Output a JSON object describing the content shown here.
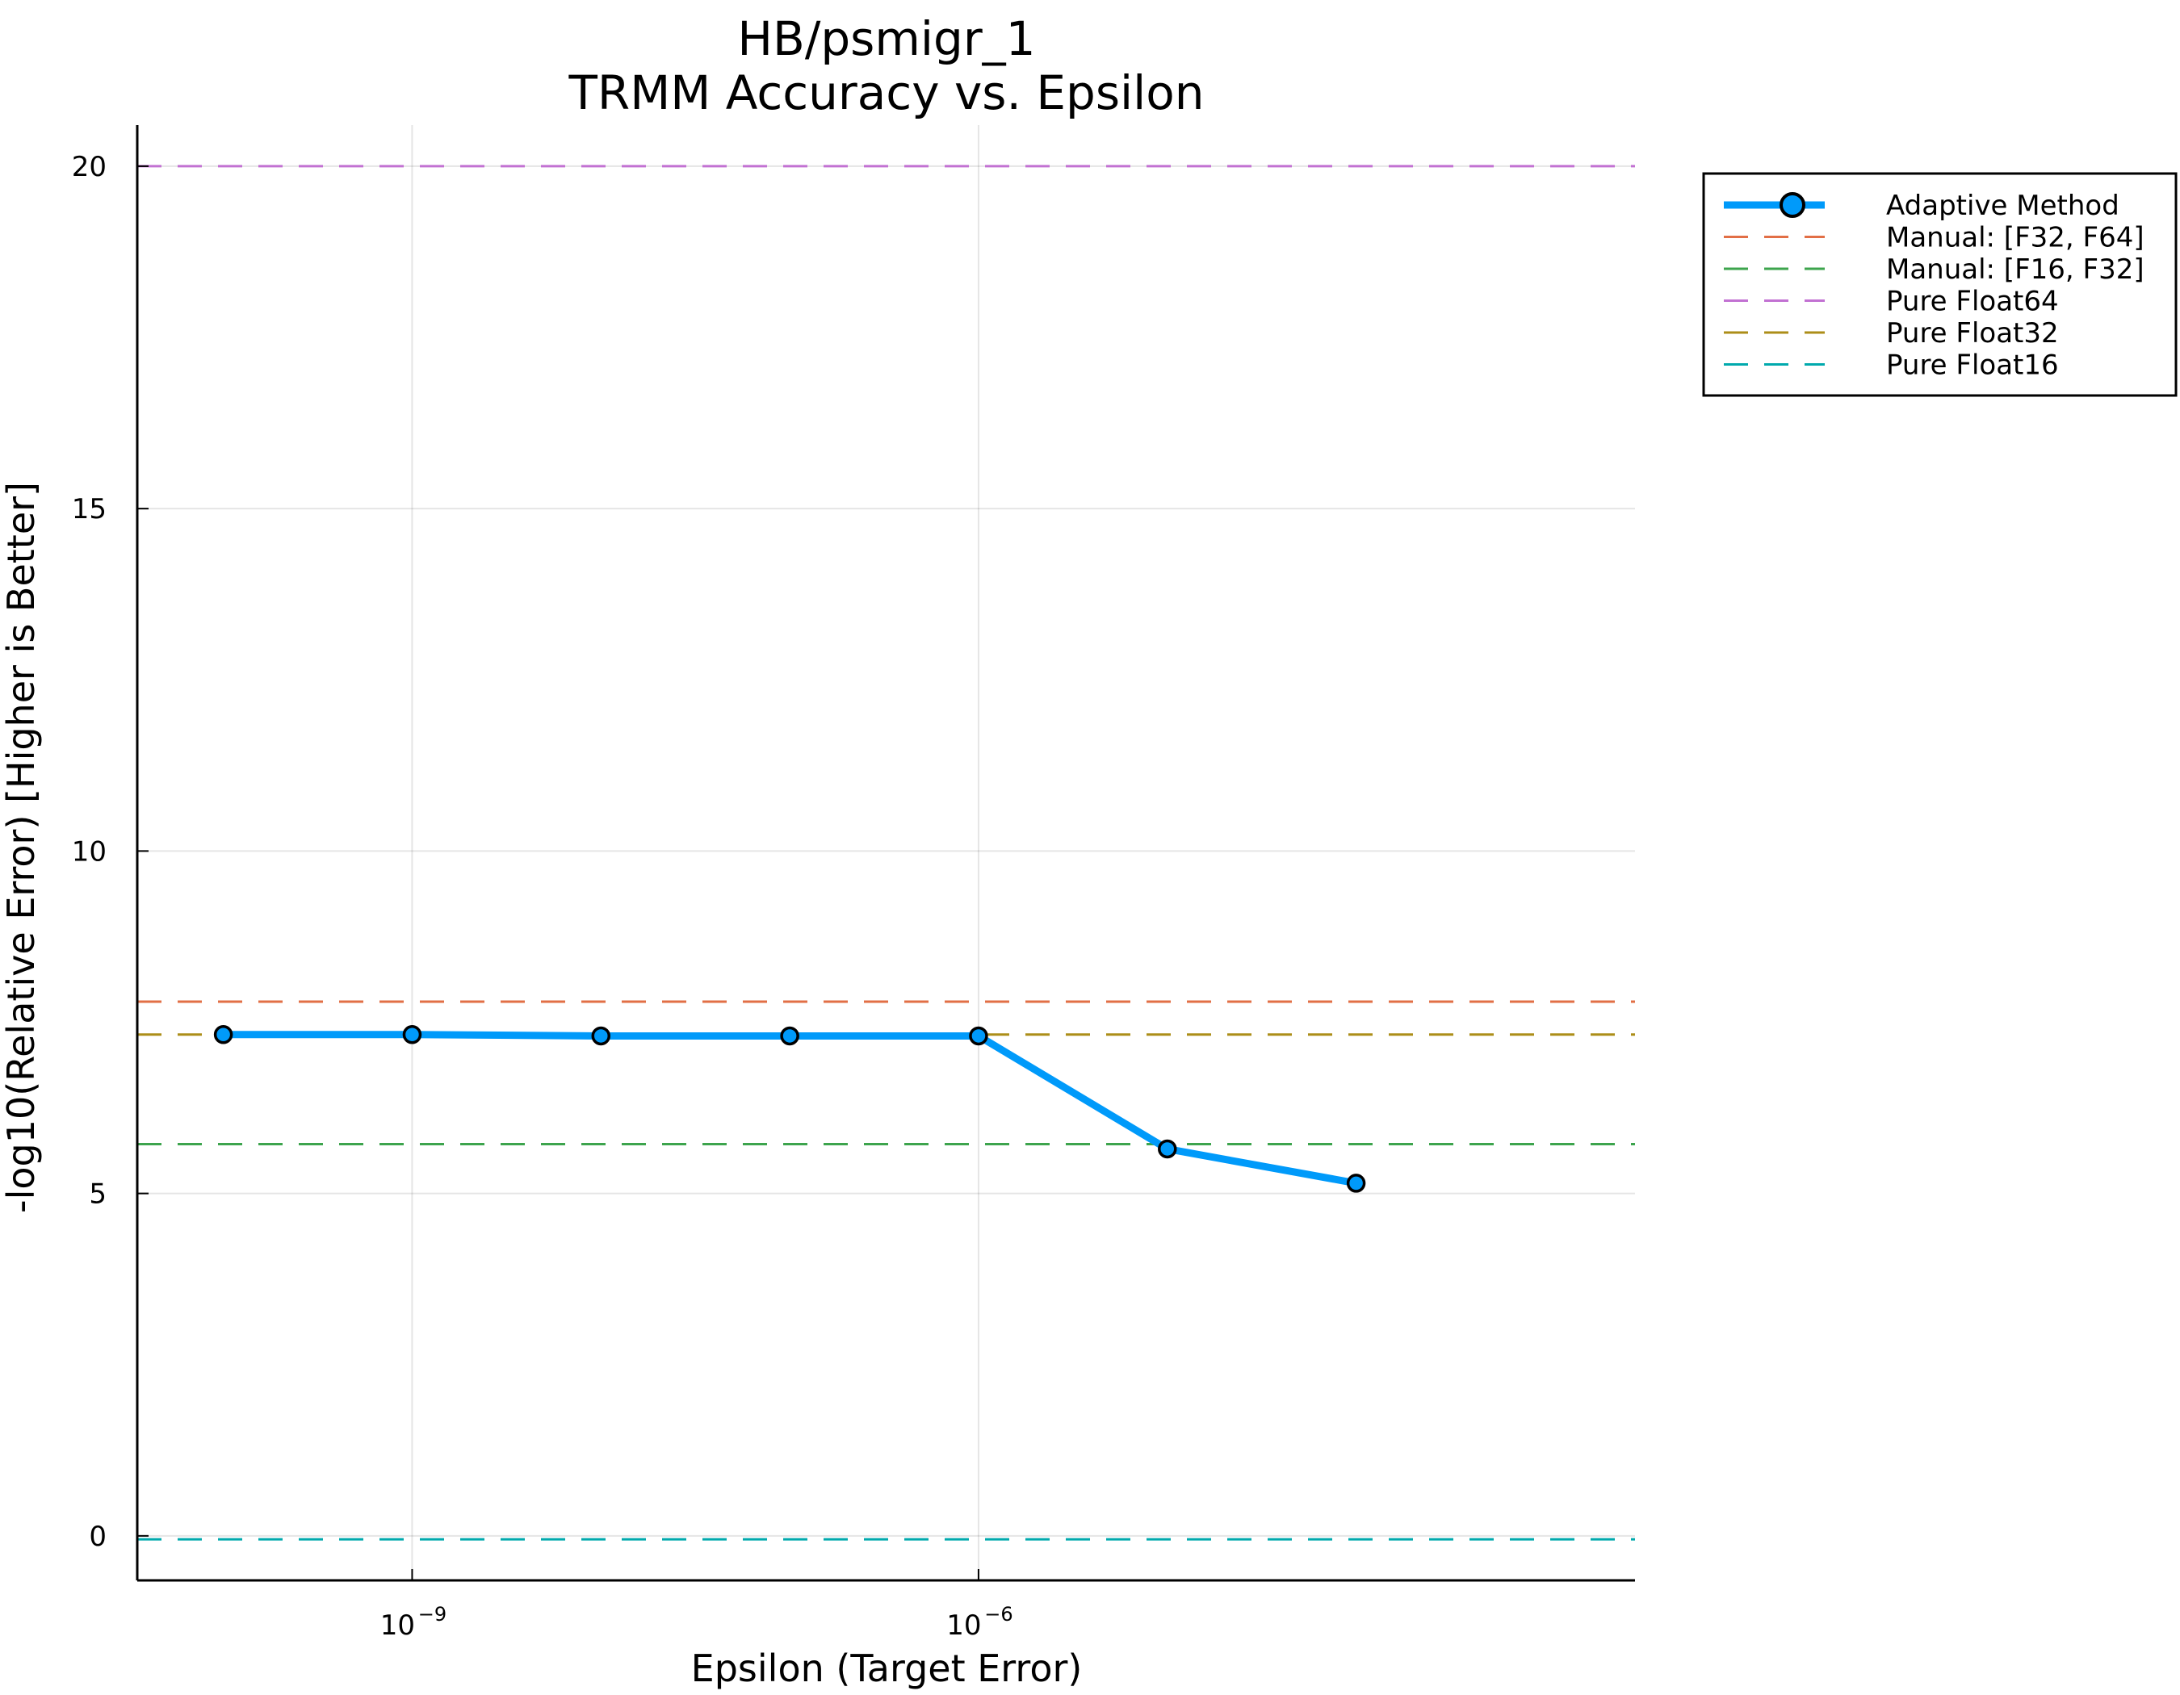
{
  "chart_data": {
    "type": "line",
    "title": "HB/psmigr_1",
    "subtitle": "TRMM Accuracy vs. Epsilon",
    "xlabel": "Epsilon (Target Error)",
    "ylabel": "-log10(Relative Error) [Higher is Better]",
    "x_scale": "log10",
    "xlim": [
      3.5e-11,
      0.003
    ],
    "ylim": [
      -0.65,
      20.6
    ],
    "x_ticks": [
      {
        "value": 1e-09,
        "base": "10",
        "exp": "−9"
      },
      {
        "value": 1e-06,
        "base": "10",
        "exp": "−6"
      }
    ],
    "y_ticks": [
      0,
      5,
      10,
      15,
      20
    ],
    "grid": true,
    "legend_position": "outside-top-right",
    "series": [
      {
        "name": "Adaptive Method",
        "style": "solid-markers",
        "color": "#009AFA",
        "x": [
          1e-10,
          1e-09,
          1e-08,
          1e-07,
          1e-06,
          1e-05,
          0.0001
        ],
        "y": [
          7.32,
          7.32,
          7.3,
          7.3,
          7.3,
          5.65,
          5.15
        ]
      },
      {
        "name": "Manual: [F32, F64]",
        "style": "dashed-hline",
        "color": "#E26F46",
        "y": 7.8
      },
      {
        "name": "Manual: [F16, F32]",
        "style": "dashed-hline",
        "color": "#3DA44D",
        "y": 5.72
      },
      {
        "name": "Pure Float64",
        "style": "dashed-hline",
        "color": "#C271D2",
        "y": 20.0
      },
      {
        "name": "Pure Float32",
        "style": "dashed-hline",
        "color": "#AC8E18",
        "y": 7.32
      },
      {
        "name": "Pure Float16",
        "style": "dashed-hline",
        "color": "#00A9AD",
        "y": -0.05
      }
    ]
  }
}
